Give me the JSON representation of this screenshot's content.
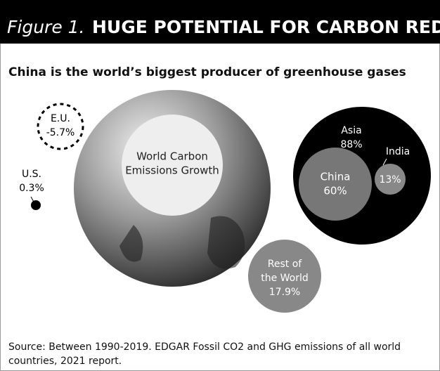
{
  "header": {
    "figure": "Figure 1.",
    "title": "HUGE POTENTIAL FOR CARBON REDUCTION"
  },
  "subtitle": "China is the world’s biggest producer of greenhouse gases",
  "bubbles": {
    "world": {
      "lines": [
        "World Carbon",
        "Emissions Growth"
      ]
    },
    "eu": {
      "lines": [
        "E.U.",
        "-5.7%"
      ]
    },
    "us": {
      "lines": [
        "U.S.",
        "0.3%"
      ]
    },
    "asia": {
      "lines": [
        "Asia",
        "88%"
      ]
    },
    "china": {
      "lines": [
        "China",
        "60%"
      ]
    },
    "india": {
      "lines": [
        "India",
        "13%"
      ]
    },
    "rest": {
      "lines": [
        "Rest of",
        "the World",
        "17.9%"
      ]
    }
  },
  "source": {
    "lines": [
      "Source: Between 1990-2019. EDGAR Fossil CO2 and GHG emissions of all world",
      "countries, 2021 report."
    ]
  }
}
